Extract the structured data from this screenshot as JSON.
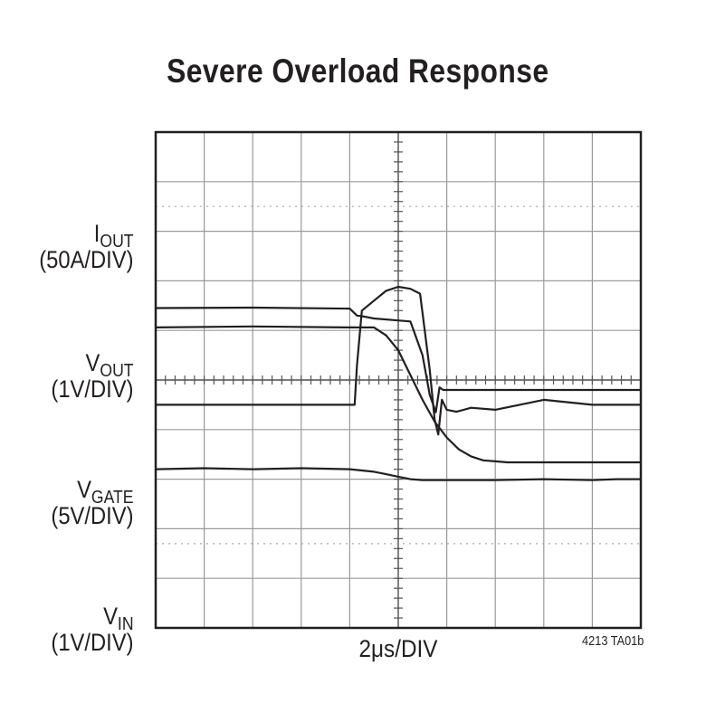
{
  "chart_data": {
    "type": "line",
    "title": "Severe Overload Response",
    "xlabel": "2μs/DIV",
    "figure_id": "4213 TA01b",
    "grid": true,
    "divisions": {
      "x": 10,
      "y": 10
    },
    "x_unit": "μs",
    "xlim": [
      0,
      20
    ],
    "channels": [
      {
        "name": "I",
        "subscript": "OUT",
        "scale": "(50A/DIV)"
      },
      {
        "name": "V",
        "subscript": "OUT",
        "scale": "(1V/DIV)"
      },
      {
        "name": "V",
        "subscript": "GATE",
        "scale": "(5V/DIV)"
      },
      {
        "name": "V",
        "subscript": "IN",
        "scale": "(1V/DIV)"
      }
    ],
    "series": [
      {
        "ylim": [
          -250,
          250
        ],
        "x": [
          0,
          8.2,
          8.3,
          8.5,
          9.0,
          9.5,
          10.0,
          10.5,
          10.9,
          11.3,
          11.5,
          11.65,
          11.8,
          12.0,
          12.4,
          13.0,
          14.0,
          16.0,
          18.0,
          20.0
        ],
        "values": [
          -25,
          -25,
          15,
          70,
          80,
          90,
          94,
          92,
          87,
          10,
          -40,
          -55,
          -20,
          -30,
          -32,
          -28,
          -30,
          -20,
          -25,
          -25
        ]
      },
      {
        "ylim": [
          -5,
          5
        ],
        "x": [
          0,
          4.0,
          8.0,
          8.3,
          8.6,
          9.0,
          10.0,
          10.5,
          11.0,
          11.3,
          11.55,
          11.7,
          11.85,
          12.0,
          15.0,
          18.0,
          20.0
        ],
        "values": [
          1.45,
          1.46,
          1.44,
          1.3,
          1.28,
          1.24,
          1.2,
          1.18,
          0.5,
          -0.3,
          -0.65,
          -0.15,
          -0.2,
          -0.2,
          -0.2,
          -0.2,
          -0.2
        ]
      },
      {
        "ylim": [
          -25,
          25
        ],
        "x": [
          0,
          4.0,
          8.0,
          9.0,
          9.5,
          10.0,
          10.5,
          11.0,
          11.5,
          12.0,
          12.5,
          13.0,
          13.5,
          14.0,
          14.5,
          15.0,
          16.0,
          18.0,
          20.0
        ],
        "values": [
          5.3,
          5.4,
          5.3,
          5.3,
          4.5,
          3.0,
          0.5,
          -2.0,
          -4.2,
          -5.8,
          -7.0,
          -7.7,
          -8.1,
          -8.2,
          -8.3,
          -8.3,
          -8.3,
          -8.3,
          -8.3
        ]
      },
      {
        "ylim": [
          -5,
          5
        ],
        "x": [
          0,
          2.0,
          4.0,
          6.0,
          8.0,
          9.0,
          9.5,
          10.0,
          10.5,
          11.0,
          12.0,
          14.0,
          16.0,
          18.0,
          19.0,
          20.0
        ],
        "values": [
          -1.8,
          -1.78,
          -1.8,
          -1.78,
          -1.8,
          -1.85,
          -1.9,
          -1.95,
          -2.0,
          -2.02,
          -2.02,
          -2.02,
          -2.0,
          -2.02,
          -2.0,
          -2.0
        ]
      }
    ]
  }
}
